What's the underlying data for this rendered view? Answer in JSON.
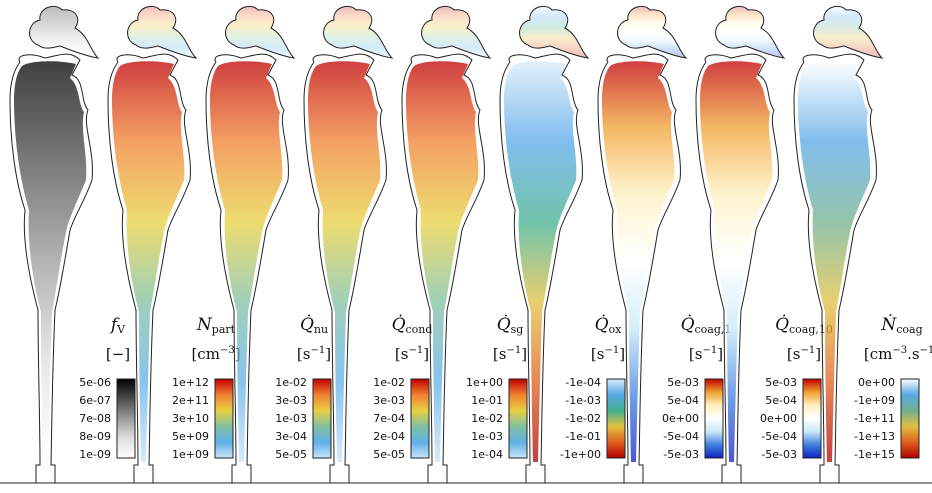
{
  "panels": [
    {
      "symbol": "f",
      "sub": "V",
      "unit": [
        {
          "t": "[−]"
        }
      ],
      "ticks": [
        "5e-06",
        "6e-07",
        "7e-08",
        "8e-09",
        "1e-09"
      ],
      "colors": [
        "#000000",
        "#4d4d4d",
        "#9a9a9a",
        "#e0e0e0",
        "#ffffff"
      ]
    },
    {
      "symbol": "N",
      "sub": "part",
      "unit": [
        {
          "t": "[cm"
        },
        {
          "sup": "−3"
        },
        {
          "t": "]"
        }
      ],
      "ticks": [
        "1e+12",
        "2e+11",
        "3e+10",
        "5e+09",
        "1e+09"
      ],
      "colors": [
        "#c00000",
        "#f08030",
        "#e8d040",
        "#80c0a0",
        "#60b0e8",
        "#c8e4f8"
      ]
    },
    {
      "symbol": "Q̇",
      "sub": "nu",
      "unit": [
        {
          "t": "[s"
        },
        {
          "sup": "−1"
        },
        {
          "t": "]"
        }
      ],
      "ticks": [
        "1e-02",
        "3e-03",
        "1e-03",
        "3e-04",
        "5e-05"
      ],
      "colors": [
        "#c00000",
        "#f08030",
        "#e8d040",
        "#80c0a0",
        "#60b0e8",
        "#c8e4f8"
      ]
    },
    {
      "symbol": "Q̇",
      "sub": "cond",
      "unit": [
        {
          "t": "[s"
        },
        {
          "sup": "−1"
        },
        {
          "t": "]"
        }
      ],
      "ticks": [
        "1e-02",
        "3e-03",
        "7e-04",
        "2e-04",
        "5e-05"
      ],
      "colors": [
        "#c00000",
        "#f08030",
        "#e8d040",
        "#80c0a0",
        "#60b0e8",
        "#c8e4f8"
      ]
    },
    {
      "symbol": "Q̇",
      "sub": "sg",
      "unit": [
        {
          "t": "[s"
        },
        {
          "sup": "−1"
        },
        {
          "t": "]"
        }
      ],
      "ticks": [
        "1e+00",
        "1e-01",
        "1e-02",
        "1e-03",
        "1e-04"
      ],
      "colors": [
        "#c00000",
        "#f08030",
        "#e8d040",
        "#80c0a0",
        "#60b0e8",
        "#c8e4f8"
      ]
    },
    {
      "symbol": "Q̇",
      "sub": "ox",
      "unit": [
        {
          "t": "[s"
        },
        {
          "sup": "−1"
        },
        {
          "t": "]"
        }
      ],
      "ticks": [
        "-1e-04",
        "-1e-03",
        "-1e-02",
        "-1e-01",
        "-1e+00"
      ],
      "colors": [
        "#d8ecfa",
        "#58a8e8",
        "#40b090",
        "#e0c040",
        "#e06020",
        "#b00000"
      ]
    },
    {
      "symbol": "Q̇",
      "sub": "coag,1",
      "unit": [
        {
          "t": "[s"
        },
        {
          "sup": "−1"
        },
        {
          "t": "]"
        }
      ],
      "ticks": [
        "5e-03",
        "5e-04",
        "0e+00",
        "-5e-04",
        "-5e-03"
      ],
      "colors": [
        "#c00000",
        "#f0a030",
        "#fff0c0",
        "#ffffff",
        "#c8e8f8",
        "#4080e0",
        "#1020c0"
      ]
    },
    {
      "symbol": "Q̇",
      "sub": "coag,10",
      "unit": [
        {
          "t": "[s"
        },
        {
          "sup": "−1"
        },
        {
          "t": "]"
        }
      ],
      "ticks": [
        "5e-03",
        "5e-04",
        "0e+00",
        "-5e-04",
        "-5e-03"
      ],
      "colors": [
        "#c00000",
        "#f0a030",
        "#fff0c0",
        "#ffffff",
        "#c8e8f8",
        "#4080e0",
        "#1020c0"
      ]
    },
    {
      "symbol": "Ṅ",
      "sub": "coag",
      "unit": [
        {
          "t": "[cm"
        },
        {
          "sup": "−3"
        },
        {
          "t": ".s"
        },
        {
          "sup": "−1"
        },
        {
          "t": "]"
        }
      ],
      "ticks": [
        "0e+00",
        "-1e+09",
        "-1e+11",
        "-1e+13",
        "-1e+15"
      ],
      "colors": [
        "#ffffff",
        "#58a8e8",
        "#70b090",
        "#e0c040",
        "#e06020",
        "#b00000"
      ]
    }
  ]
}
